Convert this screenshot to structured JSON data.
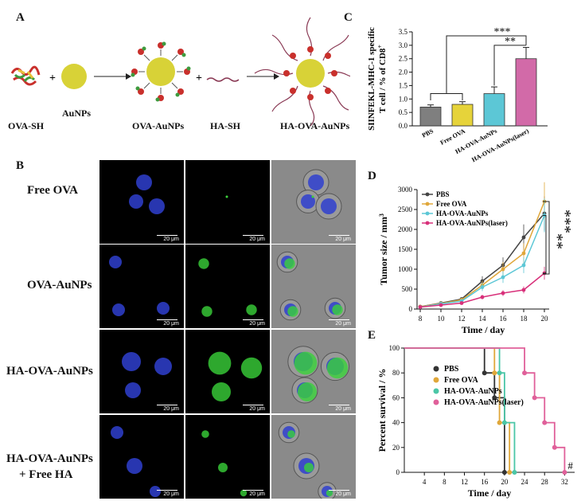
{
  "panelA": {
    "letter": "A",
    "labels": [
      "OVA-SH",
      "AuNPs",
      "OVA-AuNPs",
      "HA-SH",
      "HA-OVA-AuNPs"
    ],
    "plus": "+"
  },
  "panelB": {
    "letter": "B",
    "rows": [
      "Free OVA",
      "OVA-AuNPs",
      "HA-OVA-AuNPs",
      "HA-OVA-AuNPs",
      "+ Free HA"
    ],
    "scalebar": "20 μm"
  },
  "colors": {
    "gray": "#7f7f7f",
    "yellow": "#e6d33a",
    "cyan": "#5cc7d6",
    "pink": "#d26aa8",
    "gold": "#e0a73a"
  },
  "chart_data": [
    {
      "letter": "C",
      "type": "bar",
      "ylabel": "SIINFEKL-MHC-1 specific",
      "ylabel2": "T cell  / % of CD8",
      "ylabel2_sup": "+",
      "categories": [
        "PBS",
        "Free OVA",
        "HA-OVA-AuNPs",
        "HA-OVA-AuNPs(laser)"
      ],
      "values": [
        0.7,
        0.8,
        1.2,
        2.5
      ],
      "errors": [
        0.08,
        0.1,
        0.25,
        0.42
      ],
      "ylim": [
        0,
        3.5
      ],
      "yticks": [
        "0.0",
        "0.5",
        "1.0",
        "1.5",
        "2.0",
        "2.5",
        "3.0",
        "3.5"
      ],
      "sig1": "***",
      "sig2": "**"
    },
    {
      "letter": "D",
      "type": "line",
      "xlabel": "Time / day",
      "ylabel": "Tumor size / mm",
      "ylabel_sup": "3",
      "x": [
        8,
        10,
        12,
        14,
        16,
        18,
        20
      ],
      "xlim": [
        8,
        20
      ],
      "ylim": [
        0,
        3000
      ],
      "yticks": [
        "0",
        "500",
        "1000",
        "1500",
        "2000",
        "2500",
        "3000"
      ],
      "series": [
        {
          "name": "PBS",
          "values": [
            60,
            150,
            250,
            700,
            1100,
            1800,
            2400
          ]
        },
        {
          "name": "Free OVA",
          "values": [
            60,
            140,
            230,
            600,
            1000,
            1400,
            2700
          ]
        },
        {
          "name": "HA-OVA-AuNPs",
          "values": [
            50,
            130,
            200,
            550,
            800,
            1100,
            2350
          ]
        },
        {
          "name": "HA-OVA-AuNPs(laser)",
          "values": [
            50,
            100,
            150,
            300,
            400,
            480,
            900
          ]
        }
      ],
      "sig1": "***",
      "sig2": "**"
    },
    {
      "letter": "E",
      "type": "line",
      "xlabel": "Time / day",
      "ylabel": "Percent survival / %",
      "x_ticks": [
        "4",
        "8",
        "12",
        "16",
        "20",
        "24",
        "28",
        "32"
      ],
      "xlim": [
        0,
        34
      ],
      "ylim": [
        0,
        100
      ],
      "yticks": [
        "0",
        "20",
        "40",
        "60",
        "80",
        "100"
      ],
      "series": [
        {
          "name": "PBS",
          "steps": [
            [
              0,
              100
            ],
            [
              16,
              100
            ],
            [
              16,
              80
            ],
            [
              18,
              80
            ],
            [
              18,
              60
            ],
            [
              20,
              60
            ],
            [
              20,
              0
            ]
          ]
        },
        {
          "name": "Free OVA",
          "steps": [
            [
              0,
              100
            ],
            [
              18,
              100
            ],
            [
              18,
              80
            ],
            [
              19,
              80
            ],
            [
              19,
              40
            ],
            [
              21,
              40
            ],
            [
              21,
              0
            ]
          ]
        },
        {
          "name": "HA-OVA-AuNPs",
          "steps": [
            [
              0,
              100
            ],
            [
              19,
              100
            ],
            [
              19,
              80
            ],
            [
              20,
              80
            ],
            [
              20,
              40
            ],
            [
              22,
              40
            ],
            [
              22,
              0
            ]
          ]
        },
        {
          "name": "HA-OVA-AuNPs(laser)",
          "steps": [
            [
              0,
              100
            ],
            [
              24,
              100
            ],
            [
              24,
              80
            ],
            [
              26,
              80
            ],
            [
              26,
              60
            ],
            [
              28,
              60
            ],
            [
              28,
              40
            ],
            [
              30,
              40
            ],
            [
              30,
              20
            ],
            [
              32,
              20
            ],
            [
              32,
              0
            ]
          ]
        }
      ],
      "annotation": "#"
    }
  ]
}
